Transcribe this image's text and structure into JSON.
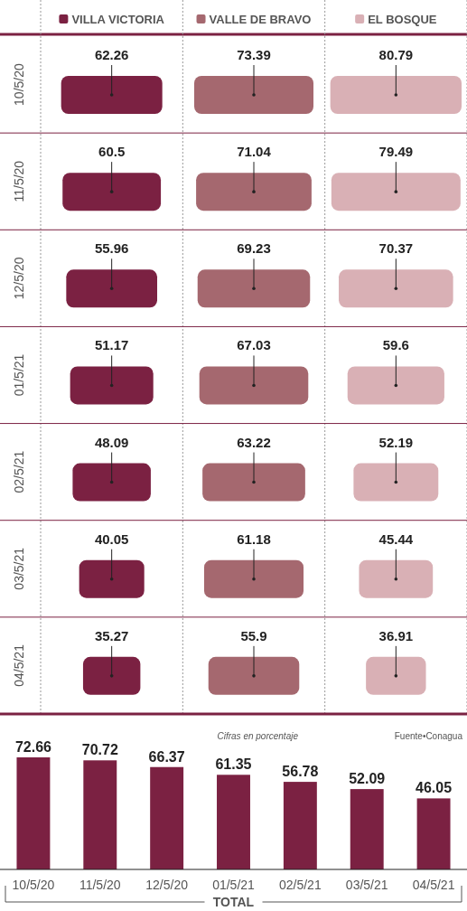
{
  "chart_data": [
    {
      "type": "other",
      "categories": [
        "10/5/20",
        "11/5/20",
        "12/5/20",
        "01/5/21",
        "02/5/21",
        "03/5/21",
        "04/5/21"
      ],
      "series": [
        {
          "name": "VILLA VICTORIA",
          "color": "#7b2142",
          "values": [
            62.26,
            60.5,
            55.96,
            51.17,
            48.09,
            40.05,
            35.27
          ]
        },
        {
          "name": "VALLE DE BRAVO",
          "color": "#a5686f",
          "values": [
            73.39,
            71.04,
            69.23,
            67.03,
            63.22,
            61.18,
            55.9
          ]
        },
        {
          "name": "EL BOSQUE",
          "color": "#d9b0b5",
          "values": [
            80.79,
            79.49,
            70.37,
            59.6,
            52.19,
            45.44,
            36.91
          ]
        }
      ],
      "data_labels": true
    },
    {
      "type": "bar",
      "categories": [
        "10/5/20",
        "11/5/20",
        "12/5/20",
        "01/5/21",
        "02/5/21",
        "03/5/21",
        "04/5/21"
      ],
      "values": [
        72.66,
        70.72,
        66.37,
        61.35,
        56.78,
        52.09,
        46.05
      ],
      "color": "#7b2142",
      "data_labels": true,
      "xlabel": "TOTAL",
      "annotations": [
        "Cifras en porcentaje",
        "Fuente•Conagua"
      ]
    }
  ]
}
